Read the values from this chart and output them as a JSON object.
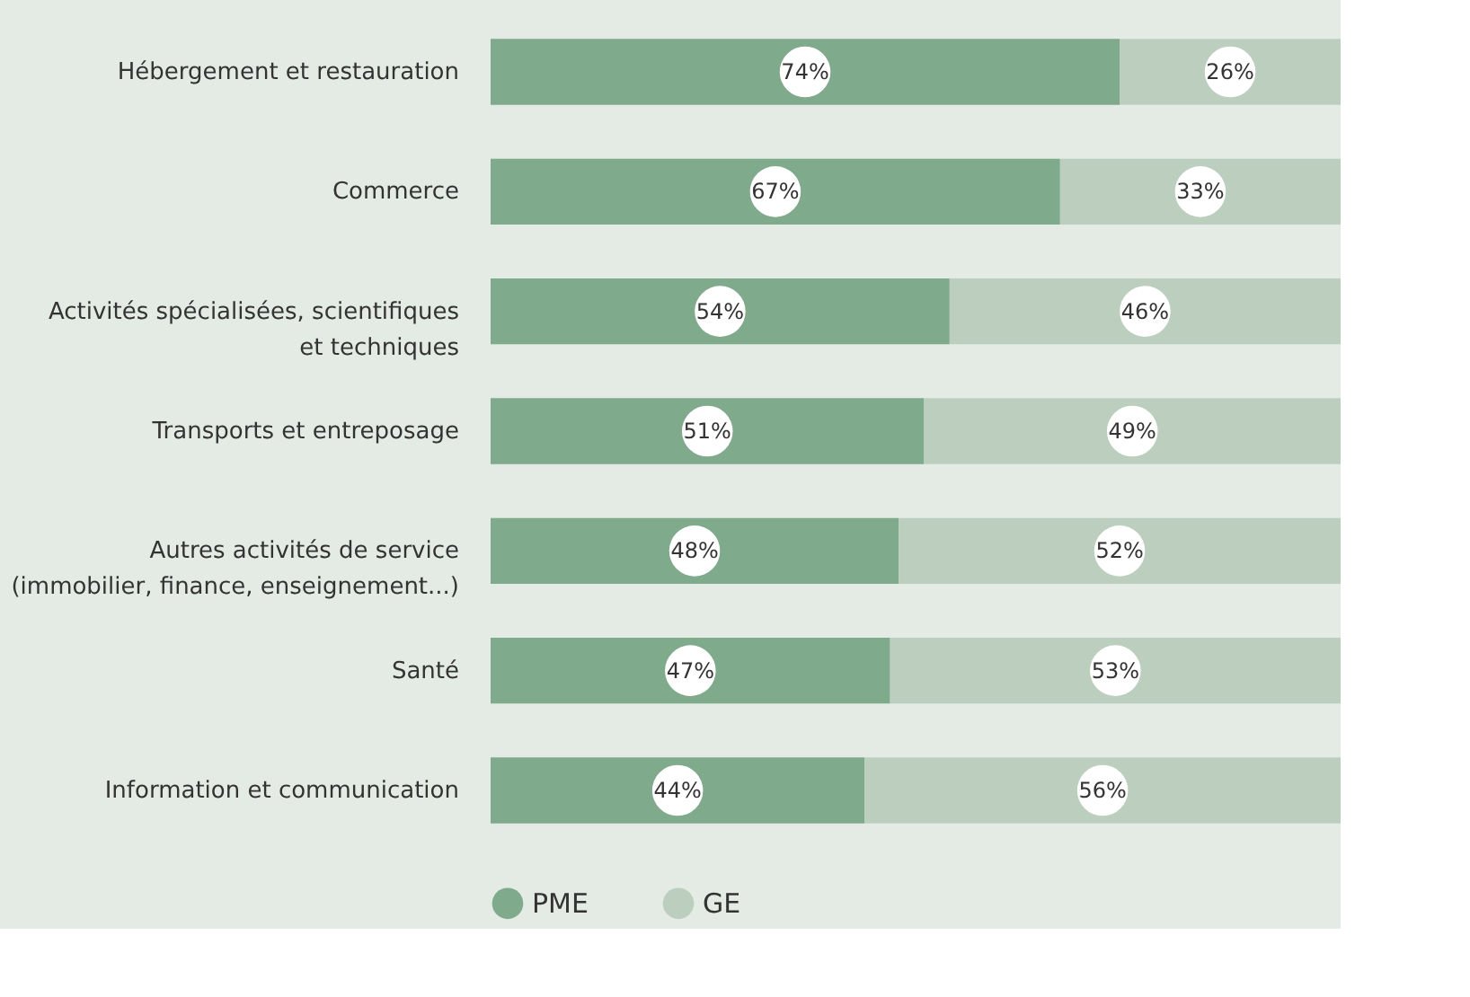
{
  "chart_data": {
    "type": "bar",
    "orientation": "horizontal",
    "stacked": true,
    "legend": "bottom",
    "categories": [
      "Hébergement et restauration",
      "Commerce",
      "Activités spécialisées, scientifiques et techniques",
      "Transports et entreposage",
      "Autres activités de service (immobilier, finance, enseignement...)",
      "Santé",
      "Information et communication"
    ],
    "series": [
      {
        "name": "PME",
        "color": "#7faa8c",
        "values": [
          74,
          67,
          54,
          51,
          48,
          47,
          44
        ],
        "value_labels": [
          "74%",
          "67%",
          "54%",
          "51%",
          "48%",
          "47%",
          "44%"
        ]
      },
      {
        "name": "GE",
        "color": "#bccfbf",
        "values": [
          26,
          33,
          46,
          49,
          52,
          53,
          56
        ],
        "value_labels": [
          "26%",
          "33%",
          "46%",
          "49%",
          "52%",
          "53%",
          "56%"
        ]
      }
    ]
  }
}
